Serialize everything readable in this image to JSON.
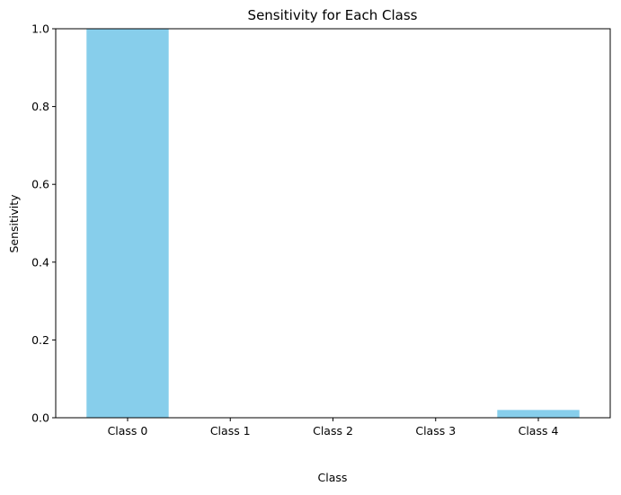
{
  "chart_data": {
    "type": "bar",
    "title": "Sensitivity for Each Class",
    "xlabel": "Class",
    "ylabel": "Sensitivity",
    "categories": [
      "Class 0",
      "Class 1",
      "Class 2",
      "Class 3",
      "Class 4"
    ],
    "values": [
      1.0,
      0.0,
      0.0,
      0.0,
      0.02
    ],
    "ylim": [
      0,
      1.0
    ],
    "yticks": [
      "0.0",
      "0.2",
      "0.4",
      "0.6",
      "0.8",
      "1.0"
    ],
    "bar_color": "#87ceeb",
    "grid": false,
    "legend": "none"
  }
}
